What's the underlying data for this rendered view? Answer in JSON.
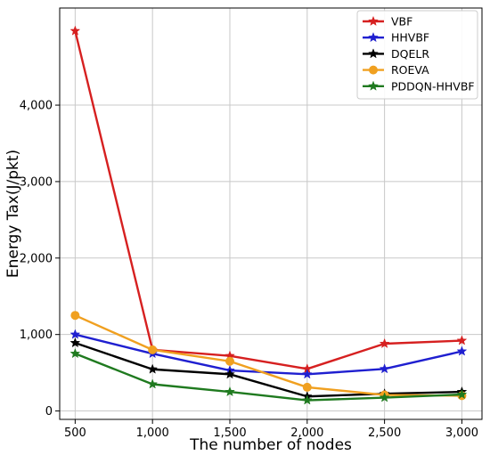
{
  "chart_data": {
    "type": "line",
    "xlabel": "The number of nodes",
    "ylabel": "Energy Tax(J/pkt)",
    "x": [
      500,
      1000,
      1500,
      2000,
      2500,
      3000
    ],
    "x_tick_labels": [
      "500",
      "1,000",
      "1,500",
      "2,000",
      "2,500",
      "3,000"
    ],
    "y_ticks": [
      0,
      1000,
      2000,
      3000,
      4000
    ],
    "y_tick_labels": [
      "0",
      "1,000",
      "2,000",
      "3,000",
      "4,000"
    ],
    "xlim": [
      400,
      3130
    ],
    "ylim": [
      -110,
      5270
    ],
    "grid": true,
    "legend_position": "top-right",
    "series": [
      {
        "name": "VBF",
        "color": "#d62020",
        "marker": "star",
        "values": [
          4970,
          800,
          720,
          550,
          880,
          920
        ]
      },
      {
        "name": "HHVBF",
        "color": "#1f1fd0",
        "marker": "star",
        "values": [
          1000,
          750,
          530,
          480,
          550,
          780
        ]
      },
      {
        "name": "DQELR",
        "color": "#000000",
        "marker": "star",
        "values": [
          890,
          545,
          480,
          190,
          225,
          250
        ]
      },
      {
        "name": "ROEVA",
        "color": "#f0a020",
        "marker": "circle",
        "values": [
          1250,
          800,
          650,
          310,
          210,
          200
        ]
      },
      {
        "name": "PDDQN-HHVBF",
        "color": "#1f7a1f",
        "marker": "star",
        "values": [
          750,
          350,
          250,
          140,
          175,
          215
        ]
      }
    ]
  }
}
